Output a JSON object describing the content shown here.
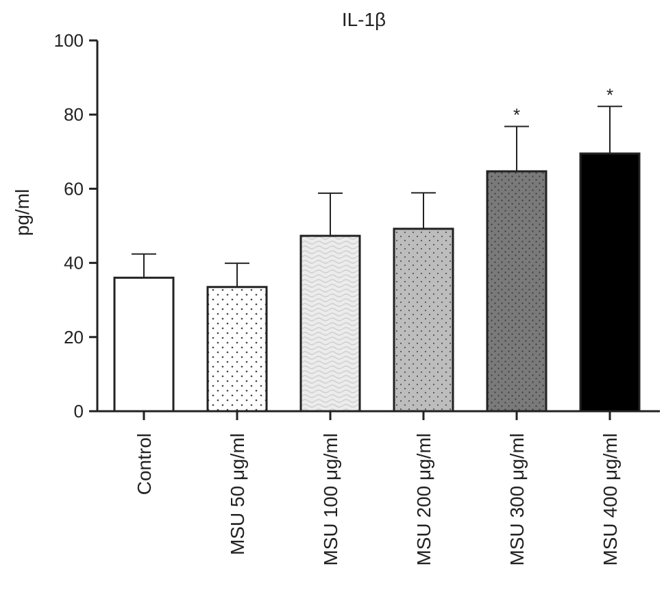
{
  "chart_data": {
    "type": "bar",
    "title": "IL-1β",
    "xlabel": "",
    "ylabel": "pg/ml",
    "ylim": [
      0,
      100
    ],
    "yticks": [
      "0",
      "20",
      "40",
      "60",
      "80",
      "100"
    ],
    "categories": [
      "Control",
      "MSU 50 μg/ml",
      "MSU 100 μg/ml",
      "MSU 200 μg/ml",
      "MSU 300 μg/ml",
      "MSU 400 μg/ml"
    ],
    "values": [
      36,
      33.5,
      47.3,
      49.2,
      64.7,
      69.5
    ],
    "error_upper": [
      42.4,
      39.9,
      58.8,
      58.9,
      76.8,
      82.2
    ],
    "significance": [
      "",
      "",
      "",
      "",
      "*",
      "*"
    ],
    "fills": [
      "white",
      "dotted-sparse",
      "light-gray-wave",
      "gray-dotted",
      "dark-gray-dotted",
      "black"
    ],
    "colors": {
      "axis": "#222222",
      "bar_outline": "#222222",
      "black_bar": "#000000"
    }
  }
}
